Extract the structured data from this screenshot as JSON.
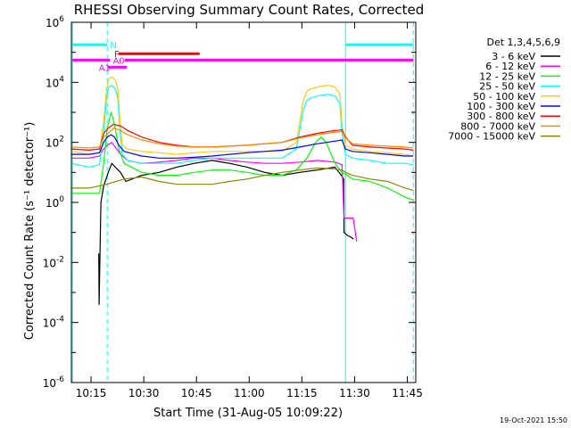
{
  "chart_data": {
    "type": "line",
    "title": "RHESSI Observing Summary Count Rates, Corrected",
    "xlabel": "Start Time (31-Aug-05 10:09:22)",
    "ylabel": "Corrected Count Rate (s⁻¹ detector⁻¹)",
    "x_unit": "minutes after 10:09:22",
    "xlim": [
      0,
      98
    ],
    "ylim": [
      1e-06,
      1000000.0
    ],
    "yscale": "log",
    "grid": false,
    "legend_position": "top-right",
    "legend_title": "Det 1,3,4,5,6,9",
    "timestamp": "19-Oct-2021 15:50",
    "x_ticks": [
      {
        "value": 5.6,
        "label": "10:15"
      },
      {
        "value": 20.6,
        "label": "10:30"
      },
      {
        "value": 35.6,
        "label": "10:45"
      },
      {
        "value": 50.6,
        "label": "11:00"
      },
      {
        "value": 65.6,
        "label": "11:15"
      },
      {
        "value": 80.6,
        "label": "11:30"
      },
      {
        "value": 95.6,
        "label": "11:45"
      }
    ],
    "y_ticks": [
      {
        "value": 1e-06,
        "base": "10",
        "exp": "-6"
      },
      {
        "value": 0.0001,
        "base": "10",
        "exp": "-4"
      },
      {
        "value": 0.01,
        "base": "10",
        "exp": "-2"
      },
      {
        "value": 1,
        "base": "10",
        "exp": "0"
      },
      {
        "value": 100,
        "base": "10",
        "exp": "2"
      },
      {
        "value": 10000,
        "base": "10",
        "exp": "4"
      },
      {
        "value": 1000000,
        "base": "10",
        "exp": "6"
      }
    ],
    "vlines": [
      {
        "x": 0.3,
        "color": "#00ffff",
        "style": "solid"
      },
      {
        "x": 10.2,
        "color": "#00ffff",
        "style": "dashed"
      },
      {
        "x": 78.0,
        "color": "#00ffff",
        "style": "solid"
      },
      {
        "x": 97.3,
        "color": "#00ffff",
        "style": "dashed"
      }
    ],
    "flag_bars": [
      {
        "label": "N",
        "color": "#00ffff",
        "y": 180000,
        "segments": [
          [
            0.3,
            10.2
          ],
          [
            78.0,
            97.3
          ]
        ],
        "label_x": 11.0
      },
      {
        "label": "F",
        "color": "#ff0000",
        "y": 90000,
        "segments": [
          [
            13.4,
            36.5
          ]
        ],
        "label_x": 12.2
      },
      {
        "label": "A0",
        "color": "#ff00ff",
        "y": 55000,
        "segments": [
          [
            0.3,
            11.0
          ],
          [
            15.2,
            97.3
          ]
        ],
        "label_x": 11.8
      },
      {
        "label": "A1",
        "color": "#ff00ff",
        "y": 32000,
        "segments": [
          [
            10.4,
            15.8
          ]
        ],
        "label_x": 7.8
      }
    ],
    "series": [
      {
        "name": "3 - 6 keV",
        "color": "#000000",
        "x": [
          7.8,
          7.9,
          8.4,
          9.2,
          10.5,
          11.5,
          12.5,
          14.0,
          15.5,
          20,
          25,
          30,
          35,
          40,
          45,
          50,
          55,
          60,
          65,
          70,
          75,
          76.8,
          77.5,
          77.6,
          78.5,
          79.5,
          80.3
        ],
        "y": [
          0.02,
          0.0004,
          1.0,
          3.5,
          10,
          20,
          15,
          10,
          5,
          8,
          10,
          15,
          20,
          25,
          20,
          15,
          10,
          8,
          10,
          12,
          15,
          8,
          6,
          0.1,
          0.08,
          0.07,
          0.06
        ]
      },
      {
        "name": "6 - 12 keV",
        "color": "#ff00ff",
        "x": [
          0,
          5,
          8,
          9.2,
          10.2,
          11.5,
          12.5,
          14.0,
          16,
          20,
          25,
          30,
          35,
          40,
          45,
          50,
          55,
          60,
          65,
          70,
          75,
          77.0,
          77.6,
          78.5,
          80.2,
          81.2
        ],
        "y": [
          30,
          30,
          35,
          60,
          80,
          100,
          70,
          40,
          25,
          20,
          22,
          25,
          30,
          30,
          25,
          22,
          20,
          20,
          22,
          25,
          22,
          18,
          0.3,
          0.3,
          0.3,
          0.05
        ]
      },
      {
        "name": "12 - 25 keV",
        "color": "#00ff00",
        "x": [
          0,
          5,
          8,
          9.2,
          10.2,
          11.3,
          12.3,
          13.5,
          15,
          20,
          25,
          30,
          35,
          40,
          45,
          50,
          55,
          60,
          64,
          67,
          69.5,
          71,
          72.5,
          75,
          77,
          78.5,
          80,
          85,
          90,
          95,
          97.3
        ],
        "y": [
          2,
          2,
          2,
          20,
          300,
          1000,
          400,
          60,
          20,
          10,
          8,
          8,
          10,
          12,
          12,
          10,
          8,
          8,
          12,
          30,
          100,
          150,
          100,
          20,
          10,
          8,
          6,
          5,
          3,
          1.5,
          1.2
        ]
      },
      {
        "name": "25 - 50 keV",
        "color": "#00ffff",
        "x": [
          0,
          5,
          8,
          9.2,
          10.0,
          10.6,
          11.5,
          12.5,
          13.2,
          13.9,
          14.5,
          16,
          20,
          25,
          30,
          35,
          40,
          45,
          50,
          55,
          60,
          64,
          66,
          67,
          68,
          70,
          73,
          75,
          76.4,
          77.0,
          78,
          80,
          85,
          90,
          95,
          97.3
        ],
        "y": [
          20,
          15,
          18,
          200,
          3000,
          7000,
          8000,
          6000,
          3000,
          200,
          40,
          25,
          20,
          20,
          20,
          25,
          30,
          30,
          30,
          30,
          30,
          60,
          1200,
          2500,
          3000,
          3500,
          4000,
          3500,
          2000,
          200,
          40,
          30,
          25,
          20,
          20,
          18
        ]
      },
      {
        "name": "50 - 100 keV",
        "color": "#ffcc00",
        "x": [
          0,
          5,
          8,
          9.2,
          10.0,
          10.6,
          11.5,
          12.5,
          13.2,
          13.9,
          14.5,
          16,
          20,
          25,
          30,
          35,
          40,
          45,
          50,
          55,
          60,
          64,
          66,
          67,
          68,
          70,
          73,
          75,
          76.4,
          77.0,
          78,
          80,
          85,
          90,
          95,
          97.3
        ],
        "y": [
          50,
          40,
          45,
          500,
          6000,
          13000,
          15000,
          12000,
          6000,
          400,
          80,
          60,
          50,
          45,
          40,
          45,
          50,
          50,
          50,
          50,
          50,
          100,
          2500,
          5000,
          6000,
          7000,
          8000,
          7000,
          4000,
          400,
          80,
          60,
          50,
          45,
          40,
          35
        ]
      },
      {
        "name": "100 - 300 keV",
        "color": "#0000ff",
        "x": [
          0,
          5,
          8,
          9.2,
          10.2,
          11.3,
          12.3,
          13.5,
          15,
          20,
          25,
          30,
          35,
          40,
          45,
          50,
          55,
          60,
          65,
          70,
          75,
          77,
          78,
          80,
          85,
          90,
          95,
          97.3
        ],
        "y": [
          40,
          40,
          45,
          100,
          150,
          180,
          150,
          80,
          50,
          35,
          30,
          30,
          32,
          35,
          40,
          45,
          50,
          55,
          70,
          90,
          110,
          120,
          60,
          50,
          45,
          40,
          35,
          35
        ]
      },
      {
        "name": "300 - 800 keV",
        "color": "#ff0000",
        "x": [
          0,
          5,
          8,
          9.2,
          10.5,
          12,
          14,
          16,
          20,
          25,
          30,
          35,
          40,
          45,
          50,
          55,
          60,
          65,
          70,
          75,
          77,
          78,
          80,
          85,
          90,
          95,
          97.3
        ],
        "y": [
          60,
          55,
          60,
          200,
          300,
          400,
          350,
          250,
          150,
          100,
          80,
          70,
          70,
          75,
          80,
          90,
          100,
          150,
          200,
          250,
          260,
          150,
          80,
          70,
          65,
          60,
          55
        ]
      },
      {
        "name": "800 - 7000 keV",
        "color": "#ff8800",
        "x": [
          0,
          5,
          8,
          9.2,
          10.5,
          12,
          14,
          16,
          20,
          25,
          30,
          35,
          40,
          45,
          50,
          55,
          60,
          65,
          70,
          75,
          77,
          78,
          80,
          85,
          90,
          95,
          97.3
        ],
        "y": [
          70,
          65,
          70,
          150,
          200,
          300,
          250,
          180,
          120,
          90,
          75,
          70,
          70,
          75,
          80,
          90,
          100,
          140,
          180,
          220,
          230,
          140,
          90,
          80,
          75,
          70,
          65
        ]
      },
      {
        "name": "7000 - 15000 keV",
        "color": "#888800",
        "x": [
          0,
          5,
          10,
          15,
          20,
          25,
          30,
          35,
          40,
          45,
          50,
          55,
          60,
          65,
          70,
          75,
          77,
          78,
          80,
          85,
          90,
          95,
          97.3
        ],
        "y": [
          3,
          3,
          4,
          6,
          7,
          5,
          4,
          4,
          4,
          5,
          6,
          8,
          10,
          12,
          14,
          13,
          12,
          10,
          8,
          6,
          5,
          3,
          2.5
        ]
      }
    ]
  }
}
